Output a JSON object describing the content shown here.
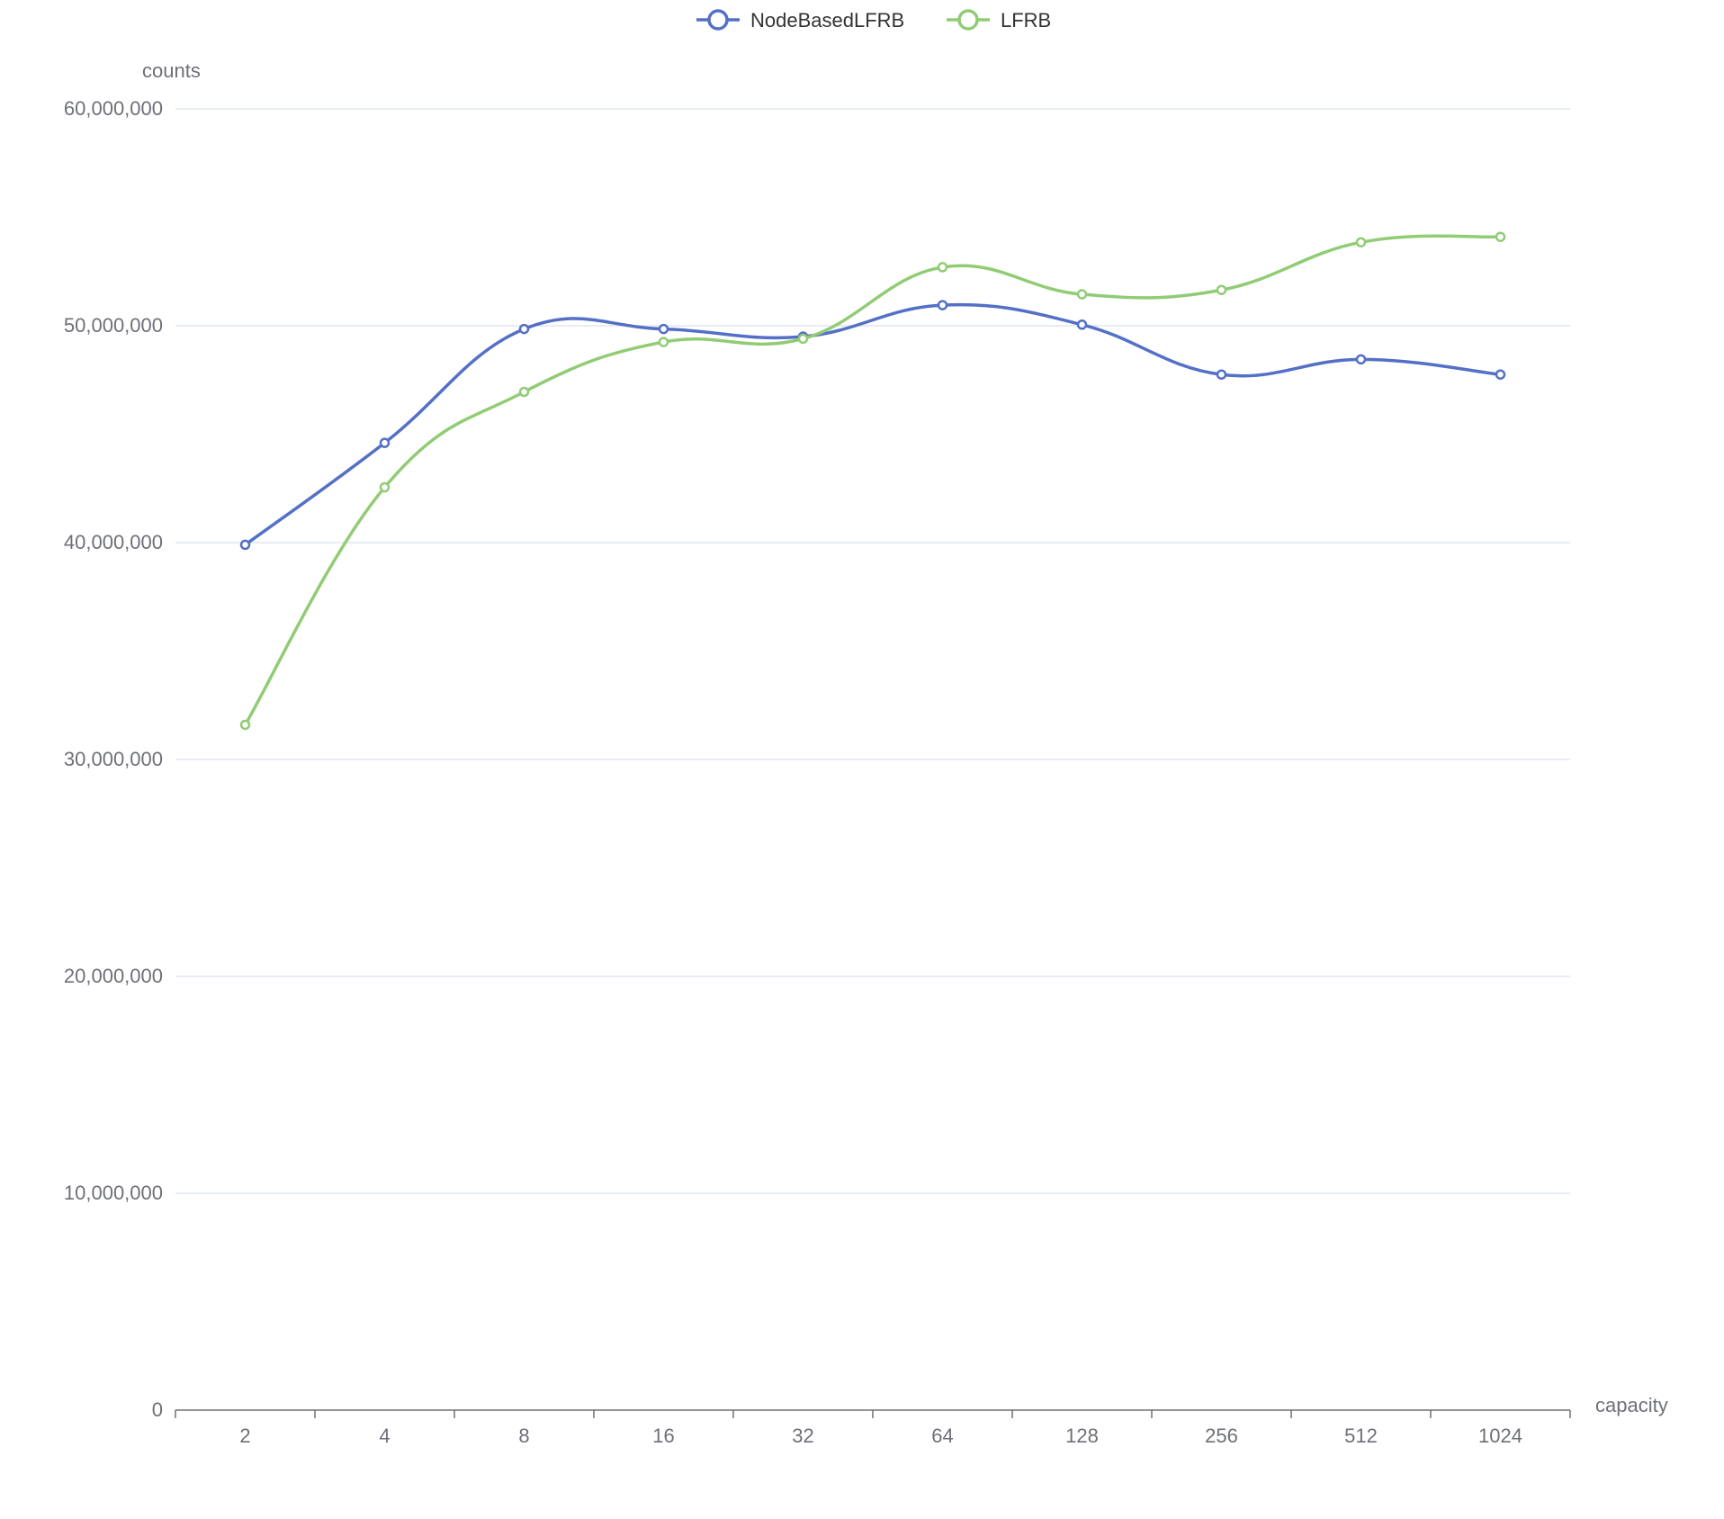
{
  "chart_data": {
    "type": "line",
    "smooth": true,
    "title": "",
    "xlabel": "capacity",
    "ylabel": "counts",
    "categories": [
      "2",
      "4",
      "8",
      "16",
      "32",
      "64",
      "128",
      "256",
      "512",
      "1024"
    ],
    "ylim": [
      0,
      60000000
    ],
    "yticks": [
      0,
      10000000,
      20000000,
      30000000,
      40000000,
      50000000,
      60000000
    ],
    "ytick_labels": [
      "0",
      "10,000,000",
      "20,000,000",
      "30,000,000",
      "40,000,000",
      "50,000,000",
      "60,000,000"
    ],
    "grid": "horizontal",
    "legend_position": "top-center",
    "series": [
      {
        "name": "NodeBasedLFRB",
        "color": "#5470c6",
        "values": [
          39900000,
          44600000,
          49850000,
          49850000,
          49500000,
          50950000,
          50050000,
          47750000,
          48450000,
          47750000
        ]
      },
      {
        "name": "LFRB",
        "color": "#91cc75",
        "values": [
          31600000,
          42550000,
          46950000,
          49250000,
          49400000,
          52700000,
          51450000,
          51650000,
          53850000,
          54100000
        ]
      }
    ]
  }
}
